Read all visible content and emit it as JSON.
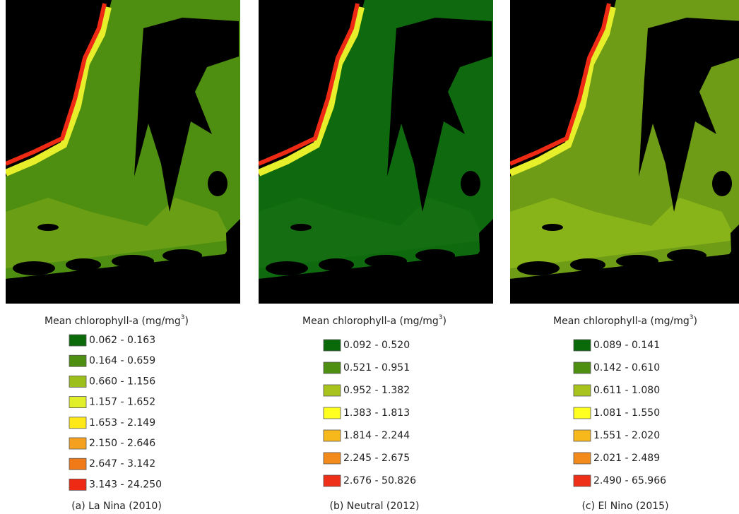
{
  "panels": [
    {
      "legend": {
        "title": {
          "text": "Mean chlorophyll-a (mg/mg",
          "sup": "3",
          "end": ")"
        },
        "items": [
          {
            "label": "0.062 - 0.163",
            "color": "#0a6a0a"
          },
          {
            "label": "0.164 - 0.659",
            "color": "#4e8e10"
          },
          {
            "label": "0.660 - 1.156",
            "color": "#9dbf1c"
          },
          {
            "label": "1.157 - 1.652",
            "color": "#e1ee2a"
          },
          {
            "label": "1.653 - 2.149",
            "color": "#ffe817"
          },
          {
            "label": "2.150 - 2.646",
            "color": "#f6a020"
          },
          {
            "label": "2.647 - 3.142",
            "color": "#f07a18"
          },
          {
            "label": "3.143 - 24.250",
            "color": "#ee2a14"
          }
        ]
      },
      "caption": "(a) La Nina (2010)"
    },
    {
      "legend": {
        "title": {
          "text": "Mean chlorophyll-a (mg/mg",
          "sup": "3",
          "end": ")"
        },
        "items": [
          {
            "label": "0.092 - 0.520",
            "color": "#0a6a0a"
          },
          {
            "label": "0.521 - 0.951",
            "color": "#4e8e10"
          },
          {
            "label": "0.952 - 1.382",
            "color": "#a8c41c"
          },
          {
            "label": "1.383 - 1.813",
            "color": "#ffff20"
          },
          {
            "label": "1.814 - 2.244",
            "color": "#f7b81c"
          },
          {
            "label": "2.245 - 2.675",
            "color": "#f28a1c"
          },
          {
            "label": "2.676 - 50.826",
            "color": "#ee3018"
          }
        ]
      },
      "caption": "(b) Neutral (2012)"
    },
    {
      "legend": {
        "title": {
          "text": "Mean chlorophyll-a (mg/mg",
          "sup": "3",
          "end": ")"
        },
        "items": [
          {
            "label": "0.089 - 0.141",
            "color": "#0a6a0a"
          },
          {
            "label": "0.142 - 0.610",
            "color": "#4e8e10"
          },
          {
            "label": "0.611 - 1.080",
            "color": "#a8c41c"
          },
          {
            "label": "1.081 - 1.550",
            "color": "#ffff20"
          },
          {
            "label": "1.551 - 2.020",
            "color": "#f7b81c"
          },
          {
            "label": "2.021 - 2.489",
            "color": "#f28a1c"
          },
          {
            "label": "2.490 - 65.966",
            "color": "#ee3018"
          }
        ]
      },
      "caption": "(c) El Nino (2015)"
    }
  ]
}
